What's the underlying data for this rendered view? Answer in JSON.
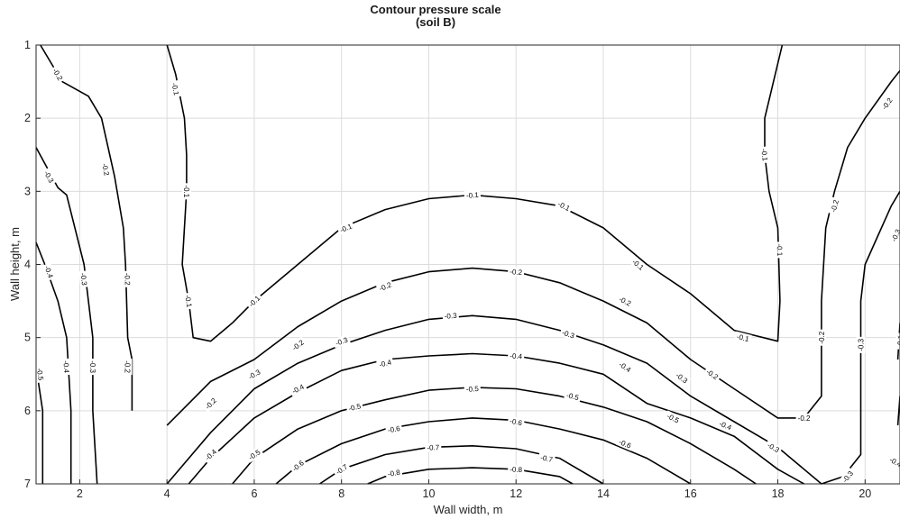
{
  "chart_data": {
    "type": "contour",
    "title": "Contour pressure scale",
    "subtitle": "(soil B)",
    "xlabel": "Wall  width, m",
    "ylabel": "Wall height, m",
    "xlim": [
      1,
      20.8
    ],
    "ylim": [
      1,
      7
    ],
    "y_reversed": true,
    "grid": true,
    "x_ticks": [
      "2",
      "4",
      "6",
      "8",
      "10",
      "12",
      "14",
      "16",
      "18",
      "20"
    ],
    "y_ticks": [
      "1",
      "2",
      "3",
      "4",
      "5",
      "6",
      "7"
    ],
    "contours": [
      {
        "level": -0.2,
        "labels": [
          {
            "text": "-0.2",
            "at": [
              1.5,
              1.4
            ]
          },
          {
            "text": "-0.2",
            "at": [
              2.6,
              2.7
            ]
          },
          {
            "text": "-0.2",
            "at": [
              3.1,
              4.2
            ]
          },
          {
            "text": "-0.2",
            "at": [
              3.1,
              5.4
            ]
          }
        ],
        "points": [
          [
            1.1,
            1.0
          ],
          [
            1.6,
            1.5
          ],
          [
            2.2,
            1.7
          ],
          [
            2.5,
            2.0
          ],
          [
            2.8,
            2.8
          ],
          [
            3.0,
            3.5
          ],
          [
            3.05,
            4.0
          ],
          [
            3.1,
            5.0
          ],
          [
            3.2,
            5.3
          ],
          [
            3.2,
            6.0
          ]
        ]
      },
      {
        "level": -0.3,
        "labels": [
          {
            "text": "-0.3",
            "at": [
              1.3,
              2.8
            ]
          },
          {
            "text": "-0.3",
            "at": [
              2.1,
              4.2
            ]
          },
          {
            "text": "-0.3",
            "at": [
              2.3,
              5.4
            ]
          }
        ],
        "points": [
          [
            1.0,
            2.4
          ],
          [
            1.5,
            2.95
          ],
          [
            1.7,
            3.05
          ],
          [
            2.1,
            4.0
          ],
          [
            2.3,
            5.0
          ],
          [
            2.3,
            6.0
          ],
          [
            2.4,
            7.0
          ]
        ]
      },
      {
        "level": -0.4,
        "labels": [
          {
            "text": "-0.4",
            "at": [
              1.3,
              4.1
            ]
          },
          {
            "text": "-0.4",
            "at": [
              1.7,
              5.4
            ]
          }
        ],
        "points": [
          [
            1.0,
            3.7
          ],
          [
            1.2,
            4.0
          ],
          [
            1.5,
            4.5
          ],
          [
            1.7,
            5.0
          ],
          [
            1.8,
            6.0
          ],
          [
            1.8,
            7.0
          ]
        ]
      },
      {
        "level": -0.5,
        "labels": [
          {
            "text": "-0.5",
            "at": [
              1.1,
              5.5
            ]
          }
        ],
        "points": [
          [
            1.0,
            5.4
          ],
          [
            1.15,
            6.0
          ],
          [
            1.15,
            7.0
          ]
        ]
      },
      {
        "level": -0.1,
        "labels": [
          {
            "text": "-0.1",
            "at": [
              4.2,
              1.6
            ]
          },
          {
            "text": "-0.1",
            "at": [
              4.45,
              3.0
            ]
          },
          {
            "text": "-0.1",
            "at": [
              4.5,
              4.5
            ]
          }
        ],
        "points": [
          [
            4.0,
            1.0
          ],
          [
            4.2,
            1.4
          ],
          [
            4.4,
            2.0
          ],
          [
            4.45,
            2.5
          ],
          [
            4.45,
            3.0
          ],
          [
            4.4,
            3.5
          ],
          [
            4.35,
            4.0
          ],
          [
            4.5,
            4.5
          ],
          [
            4.6,
            5.0
          ],
          [
            5.0,
            5.05
          ],
          [
            5.5,
            4.8
          ]
        ]
      },
      {
        "level": -0.1,
        "labels": [
          {
            "text": "-0.1",
            "at": [
              6.0,
              4.5
            ]
          },
          {
            "text": "-0.1",
            "at": [
              8.1,
              3.5
            ]
          },
          {
            "text": "-0.1",
            "at": [
              11.0,
              3.05
            ]
          },
          {
            "text": "-0.1",
            "at": [
              13.1,
              3.2
            ]
          },
          {
            "text": "-0.1",
            "at": [
              14.8,
              4.0
            ]
          },
          {
            "text": "-0.1",
            "at": [
              17.2,
              5.0
            ]
          },
          {
            "text": "-0.1",
            "at": [
              18.05,
              3.8
            ]
          },
          {
            "text": "-0.1",
            "at": [
              17.7,
              2.5
            ]
          }
        ],
        "points": [
          [
            5.5,
            4.8
          ],
          [
            6.0,
            4.5
          ],
          [
            7.0,
            4.0
          ],
          [
            8.0,
            3.5
          ],
          [
            9.0,
            3.25
          ],
          [
            10.0,
            3.1
          ],
          [
            11.0,
            3.05
          ],
          [
            12.0,
            3.1
          ],
          [
            13.0,
            3.2
          ],
          [
            14.0,
            3.5
          ],
          [
            15.0,
            4.0
          ],
          [
            16.0,
            4.4
          ],
          [
            17.0,
            4.9
          ],
          [
            18.0,
            5.05
          ],
          [
            18.05,
            4.5
          ],
          [
            18.0,
            3.5
          ],
          [
            17.8,
            3.0
          ],
          [
            17.7,
            2.5
          ],
          [
            17.7,
            2.0
          ],
          [
            17.9,
            1.5
          ],
          [
            18.1,
            1.0
          ]
        ]
      },
      {
        "level": -0.2,
        "labels": [
          {
            "text": "-0.2",
            "at": [
              5.0,
              5.9
            ]
          },
          {
            "text": "-0.2",
            "at": [
              7.0,
              5.1
            ]
          },
          {
            "text": "-0.2",
            "at": [
              9.0,
              4.3
            ]
          },
          {
            "text": "-0.2",
            "at": [
              12.0,
              4.1
            ]
          },
          {
            "text": "-0.2",
            "at": [
              14.5,
              4.5
            ]
          },
          {
            "text": "-0.2",
            "at": [
              16.5,
              5.5
            ]
          },
          {
            "text": "-0.2",
            "at": [
              18.6,
              6.1
            ]
          },
          {
            "text": "-0.2",
            "at": [
              19.3,
              3.2
            ]
          },
          {
            "text": "-0.2",
            "at": [
              19.0,
              5.0
            ]
          },
          {
            "text": "-0.2",
            "at": [
              20.5,
              1.8
            ]
          }
        ],
        "points": [
          [
            4.0,
            6.2
          ],
          [
            5.0,
            5.6
          ],
          [
            6.0,
            5.3
          ],
          [
            7.0,
            4.85
          ],
          [
            8.0,
            4.5
          ],
          [
            9.0,
            4.25
          ],
          [
            10.0,
            4.1
          ],
          [
            11.0,
            4.05
          ],
          [
            12.0,
            4.1
          ],
          [
            13.0,
            4.25
          ],
          [
            14.0,
            4.5
          ],
          [
            15.0,
            4.8
          ],
          [
            16.0,
            5.3
          ],
          [
            17.0,
            5.7
          ],
          [
            18.0,
            6.1
          ],
          [
            18.6,
            6.1
          ],
          [
            19.0,
            5.8
          ],
          [
            19.0,
            4.5
          ],
          [
            19.1,
            3.5
          ],
          [
            19.3,
            3.0
          ],
          [
            19.6,
            2.4
          ],
          [
            20.0,
            2.0
          ],
          [
            20.6,
            1.5
          ],
          [
            20.8,
            1.35
          ]
        ]
      },
      {
        "level": -0.3,
        "labels": [
          {
            "text": "-0.3",
            "at": [
              6.0,
              5.5
            ]
          },
          {
            "text": "-0.3",
            "at": [
              8.0,
              5.05
            ]
          },
          {
            "text": "-0.3",
            "at": [
              10.5,
              4.7
            ]
          },
          {
            "text": "-0.3",
            "at": [
              13.2,
              4.95
            ]
          },
          {
            "text": "-0.3",
            "at": [
              15.8,
              5.55
            ]
          },
          {
            "text": "-0.3",
            "at": [
              17.9,
              6.5
            ]
          },
          {
            "text": "-0.3",
            "at": [
              19.9,
              5.1
            ]
          },
          {
            "text": "-0.3",
            "at": [
              20.7,
              3.6
            ]
          },
          {
            "text": "-0.3",
            "at": [
              19.6,
              6.9
            ]
          }
        ],
        "points": [
          [
            4.0,
            7.0
          ],
          [
            5.0,
            6.3
          ],
          [
            6.0,
            5.7
          ],
          [
            7.0,
            5.35
          ],
          [
            8.0,
            5.1
          ],
          [
            9.0,
            4.9
          ],
          [
            10.0,
            4.75
          ],
          [
            11.0,
            4.7
          ],
          [
            12.0,
            4.75
          ],
          [
            13.0,
            4.9
          ],
          [
            14.0,
            5.1
          ],
          [
            15.0,
            5.35
          ],
          [
            16.0,
            5.8
          ],
          [
            17.0,
            6.15
          ],
          [
            18.0,
            6.5
          ],
          [
            19.0,
            7.0
          ],
          [
            19.5,
            6.9
          ],
          [
            19.9,
            6.6
          ],
          [
            19.9,
            5.5
          ],
          [
            19.9,
            4.5
          ],
          [
            20.0,
            4.0
          ],
          [
            20.3,
            3.6
          ],
          [
            20.6,
            3.2
          ],
          [
            20.8,
            3.0
          ]
        ]
      },
      {
        "level": -0.4,
        "labels": [
          {
            "text": "-0.4",
            "at": [
              7.0,
              5.7
            ]
          },
          {
            "text": "-0.4",
            "at": [
              9.0,
              5.35
            ]
          },
          {
            "text": "-0.4",
            "at": [
              12.0,
              5.25
            ]
          },
          {
            "text": "-0.4",
            "at": [
              14.5,
              5.4
            ]
          },
          {
            "text": "-0.4",
            "at": [
              16.8,
              6.2
            ]
          },
          {
            "text": "-0.4",
            "at": [
              20.7,
              6.7
            ]
          },
          {
            "text": "-0.4",
            "at": [
              5.0,
              6.6
            ]
          }
        ],
        "points": [
          [
            4.5,
            7.0
          ],
          [
            5.0,
            6.65
          ],
          [
            6.0,
            6.1
          ],
          [
            7.0,
            5.75
          ],
          [
            8.0,
            5.45
          ],
          [
            9.0,
            5.3
          ],
          [
            10.0,
            5.25
          ],
          [
            11.0,
            5.22
          ],
          [
            12.0,
            5.25
          ],
          [
            13.0,
            5.35
          ],
          [
            14.0,
            5.5
          ],
          [
            15.0,
            5.9
          ],
          [
            16.0,
            6.1
          ],
          [
            17.0,
            6.35
          ],
          [
            18.0,
            6.8
          ],
          [
            18.6,
            7.0
          ]
        ]
      },
      {
        "level": -0.5,
        "labels": [
          {
            "text": "-0.5",
            "at": [
              6.0,
              6.6
            ]
          },
          {
            "text": "-0.5",
            "at": [
              8.3,
              5.95
            ]
          },
          {
            "text": "-0.5",
            "at": [
              11.0,
              5.7
            ]
          },
          {
            "text": "-0.5",
            "at": [
              13.3,
              5.8
            ]
          },
          {
            "text": "-0.5",
            "at": [
              15.6,
              6.1
            ]
          }
        ],
        "points": [
          [
            5.5,
            7.0
          ],
          [
            6.0,
            6.65
          ],
          [
            7.0,
            6.25
          ],
          [
            8.0,
            6.0
          ],
          [
            9.0,
            5.85
          ],
          [
            10.0,
            5.72
          ],
          [
            11.0,
            5.68
          ],
          [
            12.0,
            5.7
          ],
          [
            13.0,
            5.8
          ],
          [
            14.0,
            5.95
          ],
          [
            15.0,
            6.15
          ],
          [
            16.0,
            6.45
          ],
          [
            17.0,
            6.8
          ],
          [
            17.5,
            7.0
          ]
        ]
      },
      {
        "level": -0.6,
        "labels": [
          {
            "text": "-0.6",
            "at": [
              7.0,
              6.75
            ]
          },
          {
            "text": "-0.6",
            "at": [
              9.2,
              6.25
            ]
          },
          {
            "text": "-0.6",
            "at": [
              12.0,
              6.15
            ]
          },
          {
            "text": "-0.6",
            "at": [
              14.5,
              6.45
            ]
          }
        ],
        "points": [
          [
            6.5,
            7.0
          ],
          [
            7.0,
            6.75
          ],
          [
            8.0,
            6.45
          ],
          [
            9.0,
            6.25
          ],
          [
            10.0,
            6.15
          ],
          [
            11.0,
            6.1
          ],
          [
            12.0,
            6.13
          ],
          [
            13.0,
            6.25
          ],
          [
            14.0,
            6.4
          ],
          [
            15.0,
            6.65
          ],
          [
            16.0,
            7.0
          ]
        ]
      },
      {
        "level": -0.7,
        "labels": [
          {
            "text": "-0.7",
            "at": [
              8.0,
              6.8
            ]
          },
          {
            "text": "-0.7",
            "at": [
              10.1,
              6.5
            ]
          },
          {
            "text": "-0.7",
            "at": [
              12.7,
              6.65
            ]
          }
        ],
        "points": [
          [
            7.5,
            7.0
          ],
          [
            8.0,
            6.8
          ],
          [
            9.0,
            6.6
          ],
          [
            10.0,
            6.5
          ],
          [
            11.0,
            6.48
          ],
          [
            12.0,
            6.52
          ],
          [
            13.0,
            6.65
          ],
          [
            14.0,
            7.0
          ]
        ]
      },
      {
        "level": -0.8,
        "labels": [
          {
            "text": "-0.8",
            "at": [
              9.2,
              6.85
            ]
          },
          {
            "text": "-0.8",
            "at": [
              12.0,
              6.8
            ]
          }
        ],
        "points": [
          [
            8.6,
            7.0
          ],
          [
            9.0,
            6.9
          ],
          [
            10.0,
            6.8
          ],
          [
            11.0,
            6.78
          ],
          [
            12.0,
            6.8
          ],
          [
            13.0,
            6.9
          ],
          [
            13.3,
            7.0
          ]
        ]
      },
      {
        "level": -0.1,
        "labels": [
          {
            "text": "-0.1",
            "at": [
              20.8,
              5.05
            ]
          }
        ],
        "points": [
          [
            20.8,
            4.8
          ],
          [
            20.75,
            5.3
          ]
        ]
      },
      {
        "level": -0.2,
        "labels": [],
        "points": [
          [
            20.8,
            5.8
          ],
          [
            20.75,
            6.2
          ]
        ]
      }
    ]
  }
}
